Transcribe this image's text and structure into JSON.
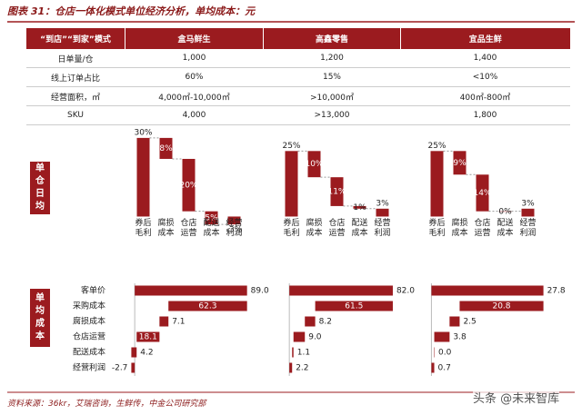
{
  "title": "图表 31：仓店一体化模式单位经济分析，单均成本：元",
  "table": {
    "header": [
      "“到店”“到家”模式",
      "盒马鲜生",
      "高鑫零售",
      "宜品生鲜"
    ],
    "rows": [
      [
        "日单量/仓",
        "1,000",
        "1,200",
        "1,400"
      ],
      [
        "线上订单占比",
        "60%",
        "15%",
        "<10%"
      ],
      [
        "经营面积，㎡",
        "4,000㎡-10,000㎡",
        ">10,000㎡",
        "400㎡-800㎡"
      ],
      [
        "SKU",
        "4,000",
        ">13,000",
        "1,800"
      ]
    ]
  },
  "row_labels": [
    "单仓日均",
    "单均成本"
  ],
  "chart_data": [
    {
      "type": "waterfall",
      "orientation": "vertical",
      "categories": [
        "券后毛利",
        "腐损成本",
        "仓店运营",
        "配送成本",
        "经营利润"
      ],
      "values": [
        30,
        8,
        20,
        5,
        -3
      ],
      "value_labels": [
        "30%",
        "8%",
        "20%",
        "5%",
        "-3%"
      ],
      "color": "#9b1b1f",
      "ylim": [
        -4,
        31
      ]
    },
    {
      "type": "waterfall",
      "orientation": "vertical",
      "categories": [
        "券后毛利",
        "腐损成本",
        "仓店运营",
        "配送成本",
        "经营利润"
      ],
      "values": [
        25,
        10,
        11,
        1,
        3
      ],
      "value_labels": [
        "25%",
        "10%",
        "11%",
        "1%",
        "3%"
      ],
      "color": "#9b1b1f",
      "ylim": [
        -4,
        31
      ]
    },
    {
      "type": "waterfall",
      "orientation": "vertical",
      "categories": [
        "券后毛利",
        "腐损成本",
        "仓店运营",
        "配送成本",
        "经营利润"
      ],
      "values": [
        25,
        9,
        14,
        0,
        3
      ],
      "value_labels": [
        "25%",
        "9%",
        "14%",
        "0%",
        "3%"
      ],
      "color": "#9b1b1f",
      "ylim": [
        -4,
        31
      ]
    },
    {
      "type": "waterfall",
      "orientation": "horizontal",
      "categories": [
        "客单价",
        "采购成本",
        "腐损成本",
        "仓店运营",
        "配送成本",
        "经营利润"
      ],
      "values": [
        89.0,
        62.3,
        7.1,
        18.1,
        4.2,
        -2.7
      ],
      "value_labels": [
        "89.0",
        "62.3",
        "7.1",
        "18.1",
        "4.2",
        "-2.7"
      ],
      "color": "#9b1b1f",
      "xlim": [
        -3,
        95
      ]
    },
    {
      "type": "waterfall",
      "orientation": "horizontal",
      "values": [
        82.0,
        61.5,
        8.2,
        9.0,
        1.1,
        2.2
      ],
      "value_labels": [
        "82.0",
        "61.5",
        "8.2",
        "9.0",
        "1.1",
        "2.2"
      ],
      "color": "#9b1b1f",
      "xlim": [
        -3,
        95
      ]
    },
    {
      "type": "waterfall",
      "orientation": "horizontal",
      "values": [
        27.8,
        20.8,
        2.5,
        3.8,
        0.0,
        0.7
      ],
      "value_labels": [
        "27.8",
        "20.8",
        "2.5",
        "3.8",
        "0.0",
        "0.7"
      ],
      "color": "#9b1b1f",
      "xlim": [
        -1,
        29.7
      ]
    }
  ],
  "source": "资料来源：36kr，艾瑞咨询，生鲜传，中金公司研究部",
  "watermark": "头条 @未来智库"
}
